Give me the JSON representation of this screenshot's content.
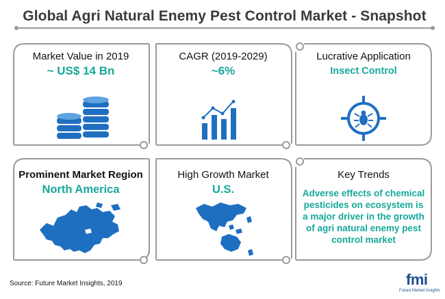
{
  "title": "Global Agri Natural Enemy Pest Control Market - Snapshot",
  "cards": {
    "market_value": {
      "heading": "Market Value in 2019",
      "value": "~ US$ 14 Bn"
    },
    "cagr": {
      "heading": "CAGR (2019-2029)",
      "value": "~6%"
    },
    "application": {
      "heading": "Lucrative Application",
      "value": "Insect Control"
    },
    "region": {
      "heading": "Prominent Market Region",
      "value": "North America"
    },
    "growth": {
      "heading": "High Growth Market",
      "value": "U.S."
    },
    "trends": {
      "heading": "Key Trends",
      "lines": [
        "Adverse effects of chemical",
        "pesticides on ecosystem is",
        "a major driver in the growth",
        "of  agri natural enemy pest",
        "control market"
      ]
    }
  },
  "source": "Source: Future Market Insights, 2019",
  "logo": {
    "mark": "fmi",
    "tagline": "Future Market Insights"
  },
  "icons": {
    "market_value": "coin-stack-icon",
    "cagr": "bar-chart-growth-icon",
    "application": "bug-target-icon",
    "region": "north-america-map-icon",
    "growth": "asia-pacific-map-icon"
  },
  "colors": {
    "accent": "#16a89a",
    "icon_blue": "#1f6fc1",
    "border": "#9a9a9a",
    "title": "#3a3a3a"
  }
}
